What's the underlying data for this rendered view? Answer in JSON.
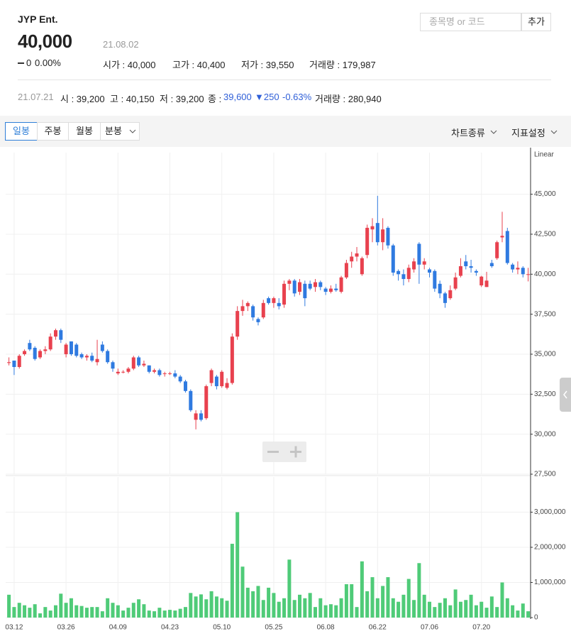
{
  "header": {
    "name": "JYP Ent.",
    "price": "40,000",
    "date": "21.08.02",
    "change": "0",
    "change_rate": "0.00%",
    "stats": [
      "시가 : 40,000",
      "고가 : 40,400",
      "저가 : 39,550",
      "거래량 : 179,987"
    ]
  },
  "search": {
    "placeholder": "종목명 or 코드",
    "button": "추가"
  },
  "previous": {
    "date": "21.07.21",
    "open": "시 : 39,200",
    "high": "고 : 40,150",
    "low": "저 : 39,200",
    "close_label": "종 :",
    "close": "39,600",
    "change": "▼250",
    "change_rate": "-0.63%",
    "volume": "거래량 : 280,940"
  },
  "toolbar": {
    "tabs": [
      "일봉",
      "주봉",
      "월봉",
      "분봉"
    ],
    "menus": [
      "차트종류",
      "지표설정"
    ]
  },
  "chart_data": [
    {
      "type": "candlestick",
      "scale_label": "Linear",
      "up_color": "#e8414e",
      "down_color": "#2f7ae0",
      "ylim": [
        27500,
        47600
      ],
      "yticks": [
        {
          "value": 27500,
          "label": "27,500"
        },
        {
          "value": 30000,
          "label": "30,000"
        },
        {
          "value": 32500,
          "label": "32,500"
        },
        {
          "value": 35000,
          "label": "35,000"
        },
        {
          "value": 37500,
          "label": "37,500"
        },
        {
          "value": 40000,
          "label": "40,000"
        },
        {
          "value": 42500,
          "label": "42,500"
        },
        {
          "value": 45000,
          "label": "45,000"
        }
      ],
      "grid": true,
      "open": [
        34450,
        34600,
        34200,
        35000,
        35700,
        35400,
        34800,
        35200,
        35300,
        36100,
        36500,
        35000,
        35800,
        35600,
        35000,
        34800,
        34900,
        34500,
        35600,
        35200,
        34500,
        33800,
        33900,
        33900,
        34100,
        34800,
        34300,
        34300,
        33900,
        34000,
        33800,
        33800,
        33800,
        33600,
        33300,
        32700,
        30900,
        31300,
        31000,
        33200,
        33600,
        33000,
        32900,
        33200,
        36100,
        37700,
        38000,
        38000,
        37200,
        37300,
        38500,
        38200,
        38200,
        38100,
        39400,
        39600,
        38900,
        39400,
        39400,
        39200,
        39500,
        39100,
        38900,
        39100,
        38900,
        39800,
        40800,
        41100,
        40000,
        41200,
        42800,
        43200,
        42000,
        42900,
        41800,
        40200,
        40000,
        39700,
        40300,
        41900,
        40600,
        40300,
        40200,
        39400,
        38800,
        38500,
        39100,
        39900,
        40800,
        40500,
        40200,
        39300,
        39200,
        40700,
        41000,
        42300,
        42700,
        40600,
        40300,
        40400,
        40000
      ],
      "high": [
        34800,
        34600,
        35000,
        35300,
        35900,
        35500,
        35300,
        35500,
        36300,
        36600,
        36600,
        35700,
        35800,
        35700,
        35100,
        35000,
        35100,
        35900,
        35800,
        35300,
        34600,
        34100,
        34000,
        34200,
        34900,
        34900,
        34600,
        34300,
        34100,
        34100,
        33900,
        33900,
        34000,
        33700,
        33400,
        32800,
        31500,
        31500,
        33100,
        34100,
        33700,
        34000,
        33500,
        36300,
        38000,
        38400,
        38300,
        38100,
        37300,
        38400,
        38600,
        38600,
        38500,
        39600,
        39700,
        39700,
        39700,
        39600,
        39600,
        39700,
        39600,
        39200,
        39300,
        39400,
        39900,
        40900,
        41400,
        41700,
        41100,
        43100,
        43500,
        44900,
        43500,
        43000,
        41900,
        40300,
        40300,
        40600,
        41000,
        42000,
        41000,
        40400,
        40300,
        39600,
        38900,
        39300,
        40100,
        41000,
        41200,
        40900,
        40300,
        39900,
        40150,
        40900,
        42100,
        43900,
        42900,
        40700,
        40800,
        40500,
        40400
      ],
      "low": [
        34300,
        33700,
        34100,
        34900,
        35200,
        34600,
        34700,
        35000,
        35200,
        35900,
        35700,
        34800,
        34900,
        34800,
        34700,
        34600,
        34500,
        34300,
        35100,
        34400,
        33900,
        33700,
        33800,
        33800,
        34000,
        34200,
        34200,
        33800,
        33800,
        33600,
        33600,
        33700,
        33500,
        33200,
        32600,
        31400,
        30300,
        30800,
        30900,
        33000,
        32800,
        32900,
        32800,
        33100,
        35900,
        37400,
        37700,
        37100,
        36800,
        37200,
        38100,
        37900,
        37800,
        37900,
        39000,
        38600,
        38700,
        38000,
        39000,
        38900,
        39000,
        38700,
        38800,
        38900,
        38800,
        39700,
        40400,
        40800,
        39900,
        41000,
        42000,
        41800,
        41500,
        41600,
        39900,
        39600,
        39300,
        39500,
        40100,
        39400,
        40300,
        39800,
        38900,
        38500,
        37900,
        38400,
        39000,
        39800,
        40300,
        40100,
        39900,
        39200,
        39200,
        40400,
        40900,
        42000,
        40600,
        40100,
        40000,
        39800,
        39550
      ],
      "close": [
        34500,
        34200,
        34900,
        35200,
        35300,
        34700,
        35200,
        35300,
        36100,
        36500,
        35900,
        35600,
        35000,
        34900,
        34800,
        34900,
        34600,
        34700,
        35200,
        34500,
        34100,
        33900,
        33900,
        34100,
        34800,
        34300,
        34400,
        33900,
        34000,
        33700,
        33800,
        33800,
        33600,
        33300,
        32700,
        31500,
        31300,
        30900,
        33000,
        34000,
        33000,
        33900,
        33200,
        36100,
        37700,
        38000,
        38200,
        37300,
        37000,
        38200,
        38200,
        38500,
        38000,
        39400,
        39600,
        38800,
        39500,
        38500,
        39100,
        39500,
        39200,
        38900,
        39100,
        39000,
        39800,
        40700,
        41100,
        41300,
        41000,
        42900,
        43000,
        42000,
        42800,
        41800,
        40100,
        40000,
        39700,
        40400,
        40800,
        40600,
        40800,
        40100,
        39100,
        38800,
        38200,
        39000,
        39800,
        40500,
        40500,
        40400,
        40100,
        39850,
        39600,
        40500,
        42000,
        42400,
        40700,
        40300,
        40400,
        40000,
        40000
      ]
    },
    {
      "type": "bar",
      "color": "#4fcb78",
      "ylim": [
        0,
        4000000
      ],
      "yticks": [
        0,
        {
          "value": 1000000,
          "label": "1,000,000"
        },
        {
          "value": 2000000,
          "label": "2,000,000"
        },
        {
          "value": 3000000,
          "label": "3,000,000"
        }
      ],
      "grid": true,
      "categories": [
        null,
        "03.12",
        null,
        null,
        null,
        null,
        null,
        null,
        null,
        null,
        null,
        "03.26",
        null,
        null,
        null,
        null,
        null,
        null,
        null,
        null,
        null,
        "04.09",
        null,
        null,
        null,
        null,
        null,
        null,
        null,
        null,
        null,
        "04.23",
        null,
        null,
        null,
        null,
        null,
        null,
        null,
        null,
        null,
        "05.10",
        null,
        null,
        null,
        null,
        null,
        null,
        null,
        null,
        null,
        "05.25",
        null,
        null,
        null,
        null,
        null,
        null,
        null,
        null,
        null,
        "06.08",
        null,
        null,
        null,
        null,
        null,
        null,
        null,
        null,
        null,
        "06.22",
        null,
        null,
        null,
        null,
        null,
        null,
        null,
        null,
        null,
        "07.06",
        null,
        null,
        null,
        null,
        null,
        null,
        null,
        null,
        null,
        "07.20",
        null,
        null,
        null,
        null,
        null,
        null,
        null,
        null,
        null
      ],
      "values": [
        650000,
        300000,
        420000,
        350000,
        280000,
        380000,
        120000,
        300000,
        200000,
        350000,
        680000,
        420000,
        550000,
        350000,
        330000,
        280000,
        300000,
        300000,
        180000,
        550000,
        420000,
        350000,
        200000,
        280000,
        420000,
        520000,
        380000,
        200000,
        180000,
        280000,
        200000,
        220000,
        200000,
        250000,
        300000,
        700000,
        600000,
        660000,
        520000,
        750000,
        600000,
        550000,
        480000,
        2100000,
        3000000,
        1450000,
        850000,
        750000,
        900000,
        500000,
        850000,
        700000,
        450000,
        550000,
        1650000,
        500000,
        650000,
        550000,
        700000,
        300000,
        550000,
        350000,
        380000,
        350000,
        550000,
        950000,
        950000,
        300000,
        1600000,
        750000,
        1150000,
        550000,
        900000,
        1150000,
        550000,
        450000,
        650000,
        1100000,
        500000,
        1550000,
        650000,
        450000,
        300000,
        420000,
        550000,
        350000,
        800000,
        450000,
        500000,
        650000,
        350000,
        450000,
        280940,
        600000,
        300000,
        1000000,
        550000,
        350000,
        200000,
        400000,
        179987
      ]
    }
  ]
}
